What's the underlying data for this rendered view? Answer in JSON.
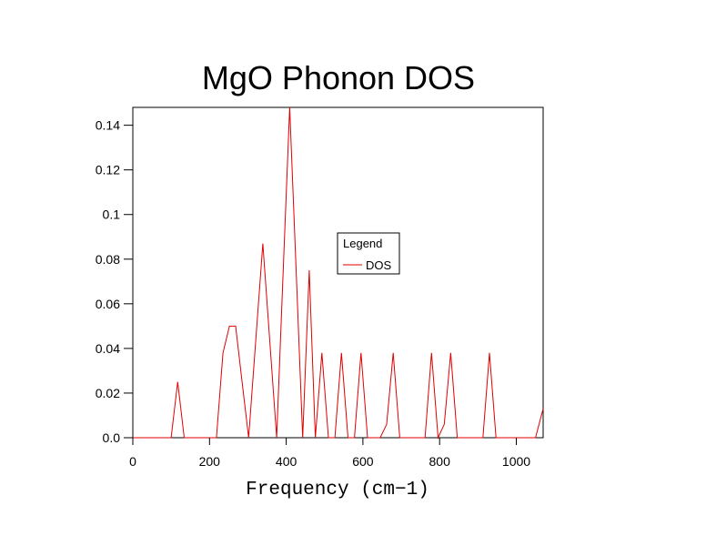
{
  "chart_data": {
    "type": "line",
    "title": "MgO Phonon DOS",
    "xlabel": "Frequency (cm−1)",
    "ylabel": "",
    "xlim": [
      0,
      1070
    ],
    "ylim": [
      0,
      0.148
    ],
    "xticks": [
      0,
      200,
      400,
      600,
      800,
      1000
    ],
    "xtick_labels": [
      "0",
      "200",
      "400",
      "600",
      "800",
      "1000"
    ],
    "yticks": [
      0,
      0.02,
      0.04,
      0.06,
      0.08,
      0.1,
      0.12,
      0.14
    ],
    "ytick_labels": [
      "0.0",
      "0.02",
      "0.04",
      "0.06",
      "0.08",
      "0.1",
      "0.12",
      "0.14"
    ],
    "grid": false,
    "legend": {
      "title": "Legend",
      "position": "center"
    },
    "series": [
      {
        "name": "DOS",
        "color": "#e00000",
        "x": [
          0,
          100,
          117,
          134,
          218,
          235,
          252,
          268,
          285,
          302,
          339,
          375,
          392,
          409,
          426,
          443,
          460,
          476,
          493,
          510,
          527,
          544,
          561,
          578,
          595,
          612,
          645,
          662,
          679,
          696,
          762,
          779,
          796,
          812,
          829,
          846,
          913,
          930,
          947,
          1050,
          1070
        ],
        "y": [
          0,
          0,
          0.025,
          0,
          0,
          0.038,
          0.05,
          0.05,
          0.025,
          0,
          0.087,
          0,
          0.074,
          0.148,
          0.074,
          0,
          0.075,
          0,
          0.038,
          0,
          0,
          0.038,
          0,
          0,
          0.038,
          0,
          0,
          0.006,
          0.038,
          0,
          0,
          0.038,
          0,
          0.006,
          0.038,
          0,
          0,
          0.038,
          0,
          0,
          0.013
        ]
      }
    ]
  }
}
